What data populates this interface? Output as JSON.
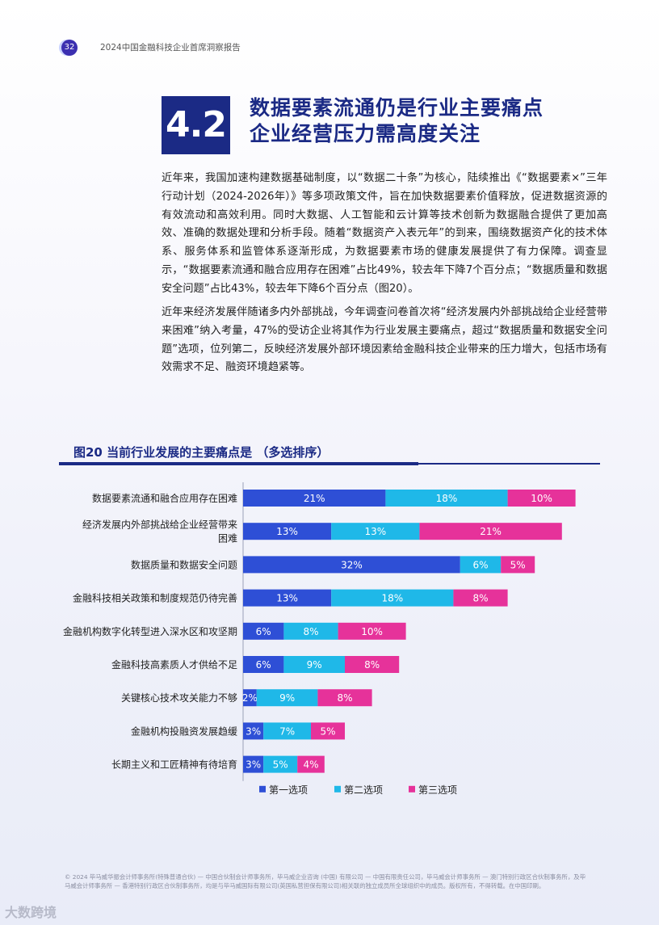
{
  "header": {
    "page_number": "32",
    "report_title": "2024中国金融科技企业首席洞察报告"
  },
  "section": {
    "number": "4.2",
    "title_line1": "数据要素流通仍是行业主要痛点",
    "title_line2": "企业经营压力需高度关注"
  },
  "body": {
    "para1": "近年来，我国加速构建数据基础制度，以“数据二十条”为核心，陆续推出《“数据要素×”三年行动计划（2024-2026年）》等多项政策文件，旨在加快数据要素价值释放，促进数据资源的有效流动和高效利用。同时大数据、人工智能和云计算等技术创新为数据融合提供了更加高效、准确的数据处理和分析手段。随着“数据资产入表元年”的到来，围绕数据资产化的技术体系、服务体系和监管体系逐渐形成，为数据要素市场的健康发展提供了有力保障。调查显示，“数据要素流通和融合应用存在困难”占比49%，较去年下降7个百分点；“数据质量和数据安全问题”占比43%，较去年下降6个百分点（图20）。",
    "para2": "近年来经济发展伴随诸多内外部挑战，今年调查问卷首次将“经济发展内外部挑战给企业经营带来困难”纳入考量，47%的受访企业将其作为行业发展主要痛点，超过“数据质量和数据安全问题”选项，位列第二，反映经济发展外部环境因素给金融科技企业带来的压力增大，包括市场有效需求不足、融资环境趋紧等。"
  },
  "figure": {
    "title": "图20  当前行业发展的主要痛点是 （多选排序）"
  },
  "chart_data": {
    "type": "bar",
    "orientation": "horizontal",
    "stacked": true,
    "categories": [
      "数据要素流通和融合应用存在困难",
      "经济发展内外部挑战给企业经营带来困难",
      "数据质量和数据安全问题",
      "金融科技相关政策和制度规范仍待完善",
      "金融机构数字化转型进入深水区和攻坚期",
      "金融科技高素质人才供给不足",
      "关键核心技术攻关能力不够",
      "金融机构投融资发展趋缓",
      "长期主义和工匠精神有待培育"
    ],
    "category_lines": [
      [
        "数据要素流通和融合应用存在困难"
      ],
      [
        "经济发展内外部挑战给企业经营带来",
        "困难"
      ],
      [
        "数据质量和数据安全问题"
      ],
      [
        "金融科技相关政策和制度规范仍待完善"
      ],
      [
        "金融机构数字化转型进入深水区和攻坚期"
      ],
      [
        "金融科技高素质人才供给不足"
      ],
      [
        "关键核心技术攻关能力不够"
      ],
      [
        "金融机构投融资发展趋缓"
      ],
      [
        "长期主义和工匠精神有待培育"
      ]
    ],
    "series": [
      {
        "name": "第一选项",
        "color": "#2e4fd6",
        "values": [
          21,
          13,
          32,
          13,
          6,
          6,
          2,
          3,
          3
        ]
      },
      {
        "name": "第二选项",
        "color": "#1fb8e8",
        "values": [
          18,
          13,
          6,
          18,
          8,
          9,
          9,
          7,
          5
        ]
      },
      {
        "name": "第三选项",
        "color": "#e6329a",
        "values": [
          10,
          21,
          5,
          8,
          10,
          8,
          8,
          5,
          4
        ]
      }
    ],
    "value_suffix": "%",
    "legend_position": "bottom"
  },
  "footer": {
    "copyright": "© 2024 毕马威华振会计师事务所(特殊普通合伙) — 中国合伙制会计师事务所，毕马威企业咨询 (中国) 有限公司 — 中国有限责任公司，毕马威会计师事务所 — 澳门特别行政区合伙制事务所，及毕马威会计师事务所 — 香港特别行政区合伙制事务所，均是与毕马威国际有限公司(英国私营担保有限公司)相关联的独立成员所全球组织中的成员。版权所有，不得转载。在中国印刷。",
    "watermark": "大数跨境"
  }
}
